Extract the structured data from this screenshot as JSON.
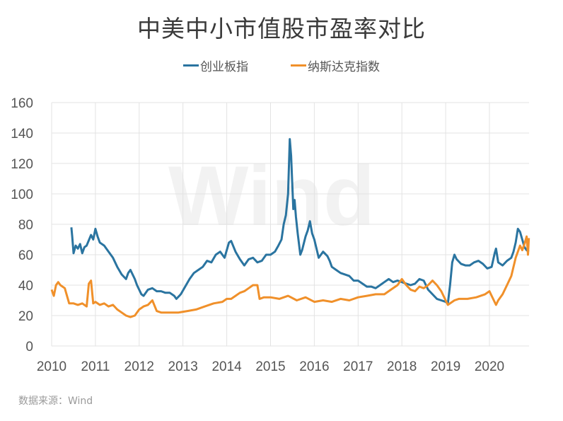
{
  "title": "中美中小市值股市盈率对比",
  "legend": [
    {
      "label": "创业板指",
      "color": "#2a74a0"
    },
    {
      "label": "纳斯达克指数",
      "color": "#f0902a"
    }
  ],
  "source": "数据来源：Wind",
  "watermark": "Wind",
  "chart_data": {
    "type": "line",
    "title": "中美中小市值股市盈率对比",
    "xlabel": "",
    "ylabel": "",
    "xlim": [
      2010,
      2020.9
    ],
    "ylim": [
      0,
      160
    ],
    "yticks": [
      0,
      20,
      40,
      60,
      80,
      100,
      120,
      140,
      160
    ],
    "xticks": [
      "2010",
      "2011",
      "2012",
      "2013",
      "2014",
      "2015",
      "2016",
      "2017",
      "2018",
      "2019",
      "2020"
    ],
    "grid": true,
    "legend_position": "top",
    "series": [
      {
        "name": "创业板指",
        "color": "#2a74a0",
        "x": [
          2010.45,
          2010.47,
          2010.5,
          2010.55,
          2010.6,
          2010.65,
          2010.7,
          2010.75,
          2010.8,
          2010.9,
          2010.95,
          2011.0,
          2011.05,
          2011.1,
          2011.2,
          2011.3,
          2011.4,
          2011.5,
          2011.6,
          2011.7,
          2011.75,
          2011.8,
          2011.9,
          2011.95,
          2012.05,
          2012.1,
          2012.2,
          2012.3,
          2012.4,
          2012.5,
          2012.6,
          2012.7,
          2012.8,
          2012.85,
          2012.95,
          2013.05,
          2013.15,
          2013.25,
          2013.35,
          2013.45,
          2013.55,
          2013.65,
          2013.75,
          2013.85,
          2013.95,
          2014.05,
          2014.1,
          2014.2,
          2014.3,
          2014.4,
          2014.5,
          2014.6,
          2014.7,
          2014.8,
          2014.9,
          2015.0,
          2015.1,
          2015.18,
          2015.25,
          2015.3,
          2015.35,
          2015.4,
          2015.44,
          2015.47,
          2015.52,
          2015.55,
          2015.58,
          2015.62,
          2015.68,
          2015.72,
          2015.8,
          2015.85,
          2015.9,
          2015.95,
          2016.0,
          2016.05,
          2016.1,
          2016.2,
          2016.3,
          2016.35,
          2016.4,
          2016.5,
          2016.6,
          2016.7,
          2016.8,
          2016.9,
          2017.0,
          2017.1,
          2017.2,
          2017.3,
          2017.4,
          2017.5,
          2017.6,
          2017.7,
          2017.8,
          2017.9,
          2018.0,
          2018.1,
          2018.2,
          2018.3,
          2018.4,
          2018.5,
          2018.6,
          2018.7,
          2018.8,
          2018.9,
          2019.0,
          2019.05,
          2019.1,
          2019.15,
          2019.2,
          2019.25,
          2019.35,
          2019.45,
          2019.55,
          2019.65,
          2019.75,
          2019.85,
          2019.95,
          2020.05,
          2020.12,
          2020.15,
          2020.2,
          2020.3,
          2020.4,
          2020.5,
          2020.55,
          2020.6,
          2020.65,
          2020.7,
          2020.75,
          2020.8,
          2020.85,
          2020.9
        ],
        "values": [
          78,
          72,
          61,
          66,
          64,
          67,
          61,
          65,
          66,
          73,
          70,
          77,
          72,
          68,
          66,
          62,
          58,
          52,
          47,
          44,
          48,
          50,
          44,
          40,
          34,
          33,
          37,
          38,
          36,
          36,
          35,
          35,
          33,
          31,
          34,
          39,
          44,
          48,
          50,
          52,
          56,
          55,
          60,
          62,
          58,
          68,
          69,
          62,
          57,
          53,
          57,
          58,
          55,
          56,
          60,
          60,
          62,
          66,
          70,
          80,
          86,
          100,
          136,
          125,
          90,
          96,
          85,
          74,
          60,
          63,
          72,
          76,
          82,
          74,
          70,
          64,
          58,
          62,
          59,
          56,
          52,
          50,
          48,
          47,
          46,
          43,
          43,
          41,
          39,
          39,
          38,
          40,
          42,
          44,
          42,
          43,
          42,
          41,
          40,
          41,
          44,
          43,
          37,
          34,
          31,
          30,
          29,
          28,
          40,
          55,
          60,
          57,
          54,
          53,
          53,
          55,
          56,
          54,
          51,
          52,
          61,
          64,
          55,
          53,
          56,
          58,
          62,
          68,
          77,
          75,
          70,
          65,
          63,
          62
        ]
      },
      {
        "name": "纳斯达克指数",
        "color": "#f0902a",
        "x": [
          2010.0,
          2010.05,
          2010.1,
          2010.15,
          2010.2,
          2010.3,
          2010.35,
          2010.4,
          2010.5,
          2010.6,
          2010.7,
          2010.8,
          2010.85,
          2010.9,
          2010.95,
          2011.0,
          2011.1,
          2011.2,
          2011.3,
          2011.4,
          2011.5,
          2011.6,
          2011.7,
          2011.8,
          2011.9,
          2012.0,
          2012.1,
          2012.2,
          2012.3,
          2012.4,
          2012.5,
          2012.7,
          2012.9,
          2013.1,
          2013.3,
          2013.5,
          2013.7,
          2013.9,
          2014.0,
          2014.1,
          2014.2,
          2014.3,
          2014.4,
          2014.5,
          2014.6,
          2014.7,
          2014.75,
          2014.85,
          2015.0,
          2015.2,
          2015.4,
          2015.6,
          2015.8,
          2016.0,
          2016.2,
          2016.4,
          2016.6,
          2016.8,
          2017.0,
          2017.2,
          2017.4,
          2017.6,
          2017.75,
          2017.9,
          2018.0,
          2018.1,
          2018.2,
          2018.3,
          2018.4,
          2018.5,
          2018.6,
          2018.7,
          2018.8,
          2018.9,
          2019.0,
          2019.05,
          2019.1,
          2019.2,
          2019.3,
          2019.5,
          2019.7,
          2019.9,
          2020.0,
          2020.1,
          2020.15,
          2020.2,
          2020.3,
          2020.4,
          2020.5,
          2020.6,
          2020.7,
          2020.75,
          2020.8,
          2020.85,
          2020.88,
          2020.9
        ],
        "values": [
          37,
          33,
          40,
          42,
          40,
          38,
          33,
          28,
          28,
          27,
          28,
          26,
          41,
          43,
          28,
          29,
          27,
          28,
          26,
          27,
          24,
          22,
          20,
          19,
          20,
          24,
          26,
          27,
          30,
          23,
          22,
          22,
          22,
          23,
          24,
          26,
          28,
          29,
          31,
          31,
          33,
          35,
          36,
          38,
          40,
          40,
          31,
          32,
          32,
          31,
          33,
          30,
          32,
          29,
          30,
          29,
          31,
          30,
          32,
          33,
          34,
          34,
          37,
          40,
          44,
          40,
          37,
          36,
          39,
          38,
          40,
          43,
          40,
          36,
          30,
          27,
          28,
          30,
          31,
          31,
          32,
          34,
          36,
          30,
          27,
          30,
          34,
          40,
          46,
          58,
          66,
          63,
          67,
          72,
          60,
          71
        ]
      }
    ]
  }
}
